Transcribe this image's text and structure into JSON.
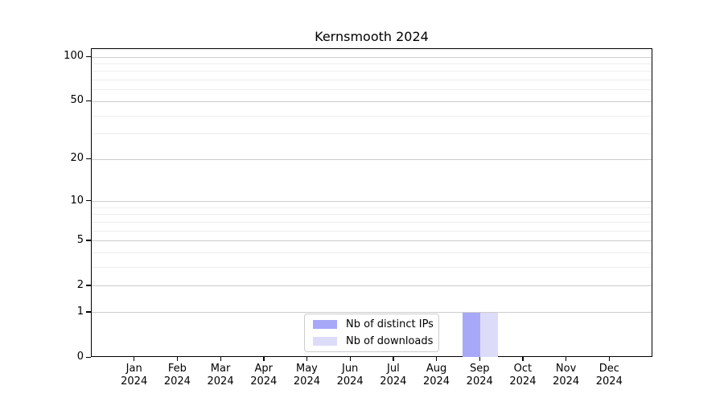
{
  "title": "Kernsmooth 2024",
  "legend": {
    "items": [
      {
        "label": "Nb of distinct IPs",
        "color": "#a8a8f8"
      },
      {
        "label": "Nb of downloads",
        "color": "#dcdcf9"
      }
    ]
  },
  "chart_data": {
    "type": "bar",
    "title": "Kernsmooth 2024",
    "categories": [
      "Jan 2024",
      "Feb 2024",
      "Mar 2024",
      "Apr 2024",
      "May 2024",
      "Jun 2024",
      "Jul 2024",
      "Aug 2024",
      "Sep 2024",
      "Oct 2024",
      "Nov 2024",
      "Dec 2024"
    ],
    "x_tick_line1": [
      "Jan",
      "Feb",
      "Mar",
      "Apr",
      "May",
      "Jun",
      "Jul",
      "Aug",
      "Sep",
      "Oct",
      "Nov",
      "Dec"
    ],
    "x_tick_line2": [
      "2024",
      "2024",
      "2024",
      "2024",
      "2024",
      "2024",
      "2024",
      "2024",
      "2024",
      "2024",
      "2024",
      "2024"
    ],
    "series": [
      {
        "name": "Nb of distinct IPs",
        "color": "#a8a8f8",
        "values": [
          0,
          0,
          0,
          0,
          0,
          0,
          0,
          0,
          1,
          0,
          0,
          0
        ]
      },
      {
        "name": "Nb of downloads",
        "color": "#dcdcf9",
        "values": [
          0,
          0,
          0,
          0,
          0,
          0,
          0,
          0,
          1,
          0,
          0,
          0
        ]
      }
    ],
    "y_axis": {
      "scale": "log1p",
      "tick_values": [
        0,
        1,
        2,
        5,
        10,
        20,
        50,
        100
      ],
      "tick_labels": [
        "0",
        "1",
        "2",
        "5",
        "10",
        "20",
        "50",
        "100"
      ],
      "minor_gridline_values": [
        3,
        4,
        6,
        7,
        8,
        9,
        30,
        40,
        60,
        70,
        80,
        90
      ],
      "major_gridline_values": [
        1,
        2,
        5,
        10,
        20,
        50,
        100
      ],
      "range": [
        0,
        113
      ]
    },
    "xlabel": "",
    "ylabel": "",
    "grid": "horizontal",
    "legend_position": "inside-bottom-center",
    "colors": {
      "major_grid": "#cccccc",
      "minor_grid": "#ededed",
      "axis": "#000000"
    }
  }
}
